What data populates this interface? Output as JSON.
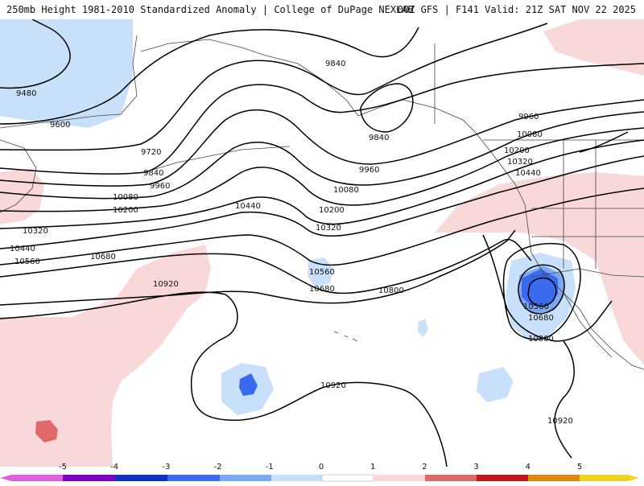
{
  "header": {
    "title_left": "250mb Height 1981-2010 Standardized Anomaly | College of DuPage NEXLAB",
    "title_right": "00Z GFS | F141 Valid: 21Z SAT NOV 22 2025"
  },
  "contours": {
    "labels": [
      "9480",
      "9600",
      "9720",
      "9840",
      "9960",
      "10080",
      "10200",
      "10320",
      "10440",
      "10560",
      "10680",
      "10800",
      "10920",
      "9840",
      "9840",
      "9960",
      "10080",
      "10200",
      "10320",
      "10440",
      "10560",
      "10680",
      "10800",
      "10920",
      "9960",
      "10080",
      "10200",
      "10320",
      "10440",
      "10560",
      "10680",
      "10800",
      "10920",
      "10920"
    ]
  },
  "colors": {
    "neg5": "#e060e0",
    "neg4": "#8000c0",
    "neg3": "#1030c0",
    "neg2": "#3a6af0",
    "neg1": "#7aa8f2",
    "neg05": "#c8e0fa",
    "pos05": "#f8d8d8",
    "pos1": "#f4b0b0",
    "pos2": "#e06a6a",
    "pos3": "#c01818",
    "pos4": "#e08810",
    "pos5": "#f0d020"
  },
  "legend": {
    "ticks": [
      "-5",
      "-4",
      "-3",
      "-2",
      "-1",
      "0",
      "1",
      "2",
      "3",
      "4",
      "5"
    ],
    "values": [
      -5,
      -4,
      -3,
      -2,
      -1,
      0,
      1,
      2,
      3,
      4,
      5
    ]
  }
}
